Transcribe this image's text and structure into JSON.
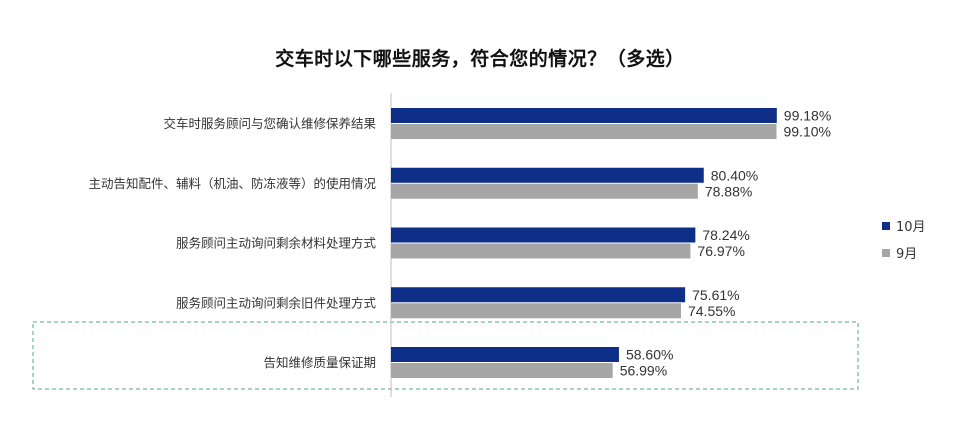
{
  "chart_data": {
    "type": "bar",
    "orientation": "horizontal",
    "title": "交车时以下哪些服务，符合您的情况？（多选）",
    "categories": [
      "交车时服务顾问与您确认维修保养结果",
      "主动告知配件、辅料（机油、防冻液等）的使用情况",
      "服务顾问主动询问剩余材料处理方式",
      "服务顾问主动询问剩余旧件处理方式",
      "告知维修质量保证期"
    ],
    "series": [
      {
        "name": "10月",
        "color": "#0d2f87",
        "values": [
          99.18,
          80.4,
          78.24,
          75.61,
          58.6
        ],
        "labels": [
          "99.18%",
          "80.40%",
          "78.24%",
          "75.61%",
          "58.60%"
        ]
      },
      {
        "name": "9月",
        "color": "#a6a6a6",
        "values": [
          99.1,
          78.88,
          76.97,
          74.55,
          56.99
        ],
        "labels": [
          "99.10%",
          "78.88%",
          "76.97%",
          "74.55%",
          "56.99%"
        ]
      }
    ],
    "xlim": [
      0,
      100
    ],
    "grid": false,
    "legend_position": "right",
    "highlighted_category": "告知维修质量保证期",
    "highlight_color": "#4caf7d"
  }
}
